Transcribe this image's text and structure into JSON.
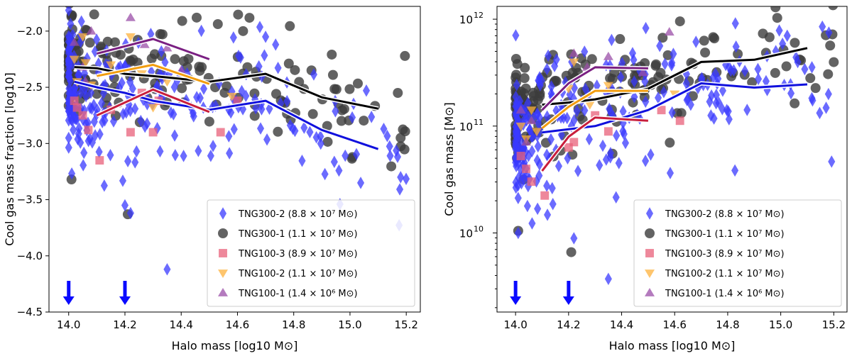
{
  "chart_data": [
    {
      "type": "scatter",
      "panel": "left",
      "xlabel": "Halo mass [log10 M⊙]",
      "ylabel": "Cool gas mass fraction [log10]",
      "xlim": [
        13.93,
        15.25
      ],
      "ylim": [
        -4.5,
        -1.78
      ],
      "yscale": "linear",
      "xticks": [
        14.0,
        14.2,
        14.4,
        14.6,
        14.8,
        15.0,
        15.2
      ],
      "yticks": [
        -4.5,
        -4.0,
        -3.5,
        -3.0,
        -2.5,
        -2.0
      ],
      "xtick_labels": [
        "14.0",
        "14.2",
        "14.4",
        "14.6",
        "14.8",
        "15.0",
        "15.2"
      ],
      "ytick_labels": [
        "−4.5",
        "−4.0",
        "−3.5",
        "−3.0",
        "−2.5",
        "−2.0"
      ],
      "arrows_x": [
        14.0,
        14.2
      ],
      "legend_position": "bottom-right",
      "series": [
        {
          "name": "TNG300-2",
          "label": "TNG300-2 (8.8 × 10⁷ M⊙)",
          "marker": "diamond",
          "color": "#3a3aff",
          "scatter": {
            "seed": 11,
            "n": 260,
            "median": [
              [
                14.0,
                -2.45
              ],
              [
                14.1,
                -2.55
              ],
              [
                14.2,
                -2.6
              ],
              [
                14.3,
                -2.65
              ],
              [
                14.5,
                -2.7
              ],
              [
                14.7,
                -2.65
              ],
              [
                14.9,
                -2.9
              ],
              [
                15.1,
                -3.05
              ],
              [
                15.2,
                -3.1
              ]
            ],
            "spread": 0.32
          },
          "extra": [
            [
              14.35,
              -4.12
            ],
            [
              14.22,
              -3.62
            ],
            [
              15.18,
              -3.3
            ],
            [
              15.12,
              -2.87
            ],
            [
              14.2,
              -3.55
            ]
          ]
        },
        {
          "name": "TNG300-1",
          "label": "TNG300-1 (1.1 × 10⁷ M⊙)",
          "marker": "circle",
          "color": "#3c3c3c",
          "scatter": {
            "seed": 23,
            "n": 190,
            "median": [
              [
                14.0,
                -2.2
              ],
              [
                14.1,
                -2.28
              ],
              [
                14.2,
                -2.33
              ],
              [
                14.3,
                -2.38
              ],
              [
                14.5,
                -2.45
              ],
              [
                14.7,
                -2.4
              ],
              [
                14.9,
                -2.6
              ],
              [
                15.1,
                -2.7
              ],
              [
                15.2,
                -2.72
              ]
            ],
            "spread": 0.22
          },
          "extra": [
            [
              14.01,
              -3.32
            ],
            [
              14.21,
              -3.63
            ],
            [
              14.62,
              -2.0
            ],
            [
              15.17,
              -2.55
            ],
            [
              15.18,
              -2.95
            ],
            [
              14.01,
              -1.86
            ]
          ]
        },
        {
          "name": "TNG100-3",
          "label": "TNG100-3 (8.9 × 10⁷ M⊙)",
          "marker": "square",
          "color": "#e8607a",
          "points": [
            [
              14.02,
              -2.62
            ],
            [
              14.03,
              -2.68
            ],
            [
              14.05,
              -2.75
            ],
            [
              14.07,
              -2.88
            ],
            [
              14.11,
              -3.15
            ],
            [
              14.15,
              -2.7
            ],
            [
              14.22,
              -2.9
            ],
            [
              14.26,
              -2.55
            ],
            [
              14.3,
              -2.9
            ],
            [
              14.32,
              -2.62
            ],
            [
              14.54,
              -2.9
            ],
            [
              14.6,
              -2.62
            ]
          ]
        },
        {
          "name": "TNG100-2",
          "label": "TNG100-2 (1.1 × 10⁷ M⊙)",
          "marker": "triangle-down",
          "color": "#fdb23c",
          "points": [
            [
              14.02,
              -2.25
            ],
            [
              14.03,
              -2.45
            ],
            [
              14.05,
              -2.05
            ],
            [
              14.06,
              -2.28
            ],
            [
              14.08,
              -2.48
            ],
            [
              14.15,
              -2.3
            ],
            [
              14.22,
              -2.05
            ],
            [
              14.26,
              -2.38
            ],
            [
              14.3,
              -2.68
            ],
            [
              14.35,
              -2.45
            ],
            [
              14.58,
              -2.58
            ]
          ]
        },
        {
          "name": "TNG100-1",
          "label": "TNG100-1 (1.4 × 10⁶ M⊙)",
          "marker": "triangle-up",
          "color": "#9b4fa8",
          "points": [
            [
              14.02,
              -2.1
            ],
            [
              14.05,
              -2.32
            ],
            [
              14.08,
              -2.0
            ],
            [
              14.22,
              -1.88
            ],
            [
              14.27,
              -2.12
            ],
            [
              14.35,
              -2.15
            ],
            [
              14.4,
              -2.35
            ],
            [
              14.06,
              -2.45
            ]
          ]
        }
      ],
      "median_lines": [
        {
          "series": "TNG300-2",
          "color": "#1010dd",
          "points": [
            [
              14.02,
              -2.45
            ],
            [
              14.1,
              -2.5
            ],
            [
              14.2,
              -2.55
            ],
            [
              14.3,
              -2.62
            ],
            [
              14.5,
              -2.7
            ],
            [
              14.7,
              -2.62
            ],
            [
              14.9,
              -2.88
            ],
            [
              15.1,
              -3.05
            ]
          ]
        },
        {
          "series": "TNG300-1",
          "color": "#000000",
          "points": [
            [
              14.02,
              -2.32
            ],
            [
              14.1,
              -2.33
            ],
            [
              14.2,
              -2.38
            ],
            [
              14.3,
              -2.4
            ],
            [
              14.5,
              -2.45
            ],
            [
              14.7,
              -2.38
            ],
            [
              14.9,
              -2.59
            ],
            [
              15.1,
              -2.69
            ]
          ]
        },
        {
          "series": "TNG100-3",
          "color": "#c81e3c",
          "points": [
            [
              14.1,
              -2.75
            ],
            [
              14.3,
              -2.52
            ],
            [
              14.5,
              -2.72
            ]
          ]
        },
        {
          "series": "TNG100-2",
          "color": "#f29d0f",
          "points": [
            [
              14.1,
              -2.4
            ],
            [
              14.3,
              -2.3
            ],
            [
              14.5,
              -2.47
            ]
          ]
        },
        {
          "series": "TNG100-1",
          "color": "#7a1f82",
          "points": [
            [
              14.1,
              -2.2
            ],
            [
              14.3,
              -2.07
            ],
            [
              14.5,
              -2.25
            ]
          ]
        }
      ]
    },
    {
      "type": "scatter",
      "panel": "right",
      "xlabel": "Halo mass [log10 M⊙]",
      "ylabel": "Cool gas mass [M⊙]",
      "xlim": [
        13.93,
        15.25
      ],
      "ylim_log10": [
        9.26,
        12.12
      ],
      "yscale": "log",
      "xticks": [
        14.0,
        14.2,
        14.4,
        14.6,
        14.8,
        15.0,
        15.2
      ],
      "yticks_log10": [
        10,
        11,
        12
      ],
      "xtick_labels": [
        "14.0",
        "14.2",
        "14.4",
        "14.6",
        "14.8",
        "15.0",
        "15.2"
      ],
      "ytick_base": "10",
      "ytick_exponents": [
        "10",
        "11",
        "12"
      ],
      "arrows_x": [
        14.0,
        14.2
      ],
      "legend_position": "bottom-right",
      "series": [
        {
          "name": "TNG300-2",
          "label": "TNG300-2 (8.8 × 10⁷ M⊙)",
          "marker": "diamond",
          "color": "#3a3aff",
          "scatter": {
            "seed": 37,
            "n": 250,
            "median": [
              [
                14.0,
                10.85
              ],
              [
                14.1,
                10.95
              ],
              [
                14.2,
                10.98
              ],
              [
                14.3,
                11.02
              ],
              [
                14.5,
                11.12
              ],
              [
                14.7,
                11.4
              ],
              [
                14.9,
                11.38
              ],
              [
                15.1,
                11.42
              ],
              [
                15.2,
                11.45
              ]
            ],
            "spread": 0.33
          },
          "extra": [
            [
              14.35,
              9.57
            ],
            [
              14.01,
              10.0
            ],
            [
              14.22,
              9.95
            ],
            [
              15.18,
              11.3
            ],
            [
              15.12,
              11.24
            ]
          ]
        },
        {
          "name": "TNG300-1",
          "label": "TNG300-1 (1.1 × 10⁷ M⊙)",
          "marker": "circle",
          "color": "#3c3c3c",
          "scatter": {
            "seed": 53,
            "n": 190,
            "median": [
              [
                14.0,
                11.15
              ],
              [
                14.1,
                11.2
              ],
              [
                14.2,
                11.25
              ],
              [
                14.3,
                11.3
              ],
              [
                14.5,
                11.38
              ],
              [
                14.7,
                11.6
              ],
              [
                14.9,
                11.62
              ],
              [
                15.1,
                11.72
              ],
              [
                15.2,
                11.72
              ]
            ],
            "spread": 0.22
          },
          "extra": [
            [
              14.21,
              9.82
            ],
            [
              14.01,
              10.02
            ],
            [
              14.62,
              11.98
            ],
            [
              15.17,
              11.85
            ],
            [
              14.03,
              10.5
            ]
          ]
        },
        {
          "name": "TNG100-3",
          "label": "TNG100-3 (8.9 × 10⁷ M⊙)",
          "marker": "square",
          "color": "#e8607a",
          "points": [
            [
              14.02,
              10.72
            ],
            [
              14.04,
              10.6
            ],
            [
              14.06,
              10.48
            ],
            [
              14.11,
              10.35
            ],
            [
              14.2,
              10.8
            ],
            [
              14.22,
              10.85
            ],
            [
              14.3,
              11.1
            ],
            [
              14.35,
              10.95
            ],
            [
              14.62,
              11.05
            ],
            [
              14.55,
              11.15
            ]
          ]
        },
        {
          "name": "TNG100-2",
          "label": "TNG100-2 (1.1 × 10⁷ M⊙)",
          "marker": "triangle-down",
          "color": "#fdb23c",
          "points": [
            [
              14.02,
              11.0
            ],
            [
              14.04,
              10.88
            ],
            [
              14.06,
              11.15
            ],
            [
              14.08,
              10.95
            ],
            [
              14.2,
              11.35
            ],
            [
              14.22,
              11.6
            ],
            [
              14.28,
              11.2
            ],
            [
              14.35,
              11.38
            ],
            [
              14.6,
              11.3
            ]
          ]
        },
        {
          "name": "TNG100-1",
          "label": "TNG100-1 (1.4 × 10⁶ M⊙)",
          "marker": "triangle-up",
          "color": "#9b4fa8",
          "points": [
            [
              14.02,
              11.15
            ],
            [
              14.04,
              10.85
            ],
            [
              14.06,
              11.05
            ],
            [
              14.22,
              11.68
            ],
            [
              14.27,
              11.55
            ],
            [
              14.35,
              11.65
            ],
            [
              14.58,
              11.88
            ],
            [
              14.48,
              11.5
            ]
          ]
        }
      ],
      "median_lines": [
        {
          "series": "TNG300-2",
          "color": "#1010dd",
          "points": [
            [
              14.1,
              10.94
            ],
            [
              14.2,
              10.97
            ],
            [
              14.3,
              11.0
            ],
            [
              14.5,
              11.15
            ],
            [
              14.7,
              11.4
            ],
            [
              14.9,
              11.36
            ],
            [
              15.1,
              11.39
            ]
          ]
        },
        {
          "series": "TNG300-1",
          "color": "#000000",
          "points": [
            [
              14.1,
              11.2
            ],
            [
              14.2,
              11.22
            ],
            [
              14.3,
              11.25
            ],
            [
              14.5,
              11.35
            ],
            [
              14.7,
              11.6
            ],
            [
              14.9,
              11.62
            ],
            [
              15.1,
              11.73
            ]
          ]
        },
        {
          "series": "TNG100-3",
          "color": "#c81e3c",
          "points": [
            [
              14.1,
              10.58
            ],
            [
              14.2,
              10.9
            ],
            [
              14.3,
              11.08
            ],
            [
              14.5,
              11.05
            ]
          ]
        },
        {
          "series": "TNG100-2",
          "color": "#f29d0f",
          "points": [
            [
              14.1,
              10.98
            ],
            [
              14.2,
              11.18
            ],
            [
              14.3,
              11.33
            ],
            [
              14.5,
              11.33
            ]
          ]
        },
        {
          "series": "TNG100-1",
          "color": "#7a1f82",
          "points": [
            [
              14.1,
              11.15
            ],
            [
              14.2,
              11.4
            ],
            [
              14.3,
              11.55
            ],
            [
              14.5,
              11.54
            ]
          ]
        }
      ]
    }
  ]
}
